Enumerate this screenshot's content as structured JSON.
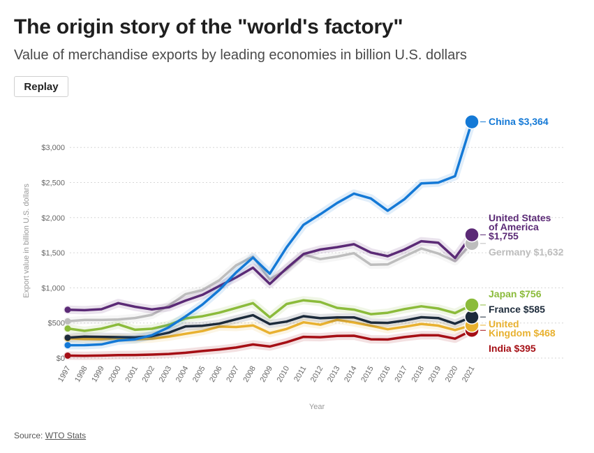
{
  "header": {
    "title": "The origin story of the \"world's factory\"",
    "subtitle": "Value of merchandise exports by leading economies in billion U.S. dollars",
    "replay_label": "Replay"
  },
  "footer": {
    "source_prefix": "Source: ",
    "source_link": "WTO Stats"
  },
  "chart_data": {
    "type": "line",
    "title": "The origin story of the \"world's factory\"",
    "subtitle": "Value of merchandise exports by leading economies in billion U.S. dollars",
    "xlabel": "Year",
    "ylabel": "Export value in billion U.S. dollars",
    "ylim": [
      0,
      3400
    ],
    "yticks": [
      0,
      500,
      1000,
      1500,
      2000,
      2500,
      3000
    ],
    "ytick_labels": [
      "$0",
      "$500",
      "$1,000",
      "$1,500",
      "$2,000",
      "$2,500",
      "$3,000"
    ],
    "x": [
      "1997",
      "1998",
      "1999",
      "2000",
      "2001",
      "2002",
      "2003",
      "2004",
      "2005",
      "2006",
      "2007",
      "2008",
      "2009",
      "2010",
      "2011",
      "2012",
      "2013",
      "2014",
      "2015",
      "2016",
      "2017",
      "2018",
      "2019",
      "2020",
      "2021"
    ],
    "series": [
      {
        "name": "India",
        "color": "#a50f15",
        "label_lines": [
          "India $395"
        ],
        "values": [
          35,
          33,
          36,
          42,
          44,
          50,
          59,
          76,
          100,
          121,
          150,
          194,
          165,
          226,
          302,
          297,
          315,
          318,
          267,
          264,
          299,
          325,
          324,
          276,
          395
        ]
      },
      {
        "name": "United Kingdom",
        "color": "#e8b130",
        "label_lines": [
          "United",
          "Kingdom $468"
        ],
        "values": [
          281,
          271,
          268,
          283,
          267,
          277,
          305,
          346,
          385,
          448,
          442,
          465,
          355,
          415,
          510,
          475,
          545,
          507,
          460,
          411,
          445,
          486,
          462,
          400,
          468
        ]
      },
      {
        "name": "France",
        "color": "#1c2a3a",
        "label_lines": [
          "France $585"
        ],
        "values": [
          290,
          305,
          302,
          298,
          294,
          311,
          362,
          451,
          460,
          490,
          553,
          610,
          484,
          520,
          596,
          568,
          580,
          580,
          506,
          501,
          535,
          582,
          570,
          489,
          585
        ]
      },
      {
        "name": "Japan",
        "color": "#8bbb3b",
        "label_lines": [
          "Japan $756"
        ],
        "values": [
          421,
          388,
          419,
          480,
          404,
          417,
          472,
          566,
          595,
          647,
          714,
          782,
          581,
          770,
          823,
          799,
          715,
          690,
          625,
          645,
          698,
          738,
          706,
          641,
          756
        ]
      },
      {
        "name": "Germany",
        "color": "#bdbdbd",
        "label_lines": [
          "Germany $1,632"
        ],
        "values": [
          524,
          543,
          543,
          550,
          571,
          616,
          748,
          911,
          970,
          1108,
          1321,
          1446,
          1120,
          1258,
          1473,
          1410,
          1445,
          1494,
          1329,
          1334,
          1448,
          1561,
          1489,
          1380,
          1632
        ]
      },
      {
        "name": "United States of America",
        "color": "#5b2a76",
        "label_lines": [
          "United States",
          "of America",
          "$1,755"
        ],
        "values": [
          688,
          682,
          696,
          782,
          731,
          693,
          724,
          819,
          901,
          1026,
          1148,
          1287,
          1056,
          1278,
          1482,
          1546,
          1580,
          1621,
          1503,
          1451,
          1546,
          1664,
          1643,
          1425,
          1755
        ]
      },
      {
        "name": "China",
        "color": "#1479d6",
        "label_lines": [
          "China $3,364"
        ],
        "values": [
          183,
          184,
          195,
          249,
          266,
          326,
          438,
          593,
          762,
          969,
          1220,
          1431,
          1202,
          1578,
          1898,
          2049,
          2209,
          2342,
          2273,
          2098,
          2263,
          2487,
          2499,
          2590,
          3364
        ]
      }
    ]
  }
}
